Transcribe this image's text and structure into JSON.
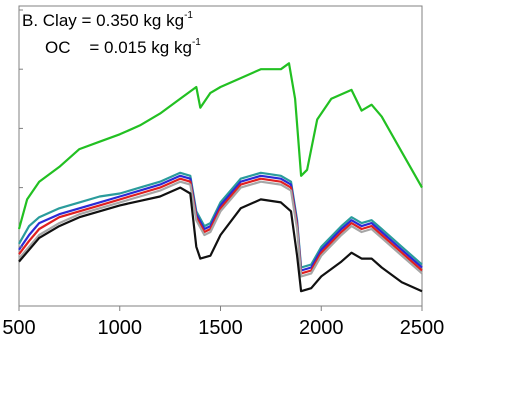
{
  "chart_data": {
    "type": "line",
    "xlim": [
      500,
      2500
    ],
    "ylim": [
      0,
      1
    ],
    "grid": false,
    "legend": "none",
    "x_ticks": [
      {
        "value": 500,
        "label": "500"
      },
      {
        "value": 1000,
        "label": "1000"
      },
      {
        "value": 1500,
        "label": "1500"
      },
      {
        "value": 2000,
        "label": "2000"
      },
      {
        "value": 2500,
        "label": "2500"
      }
    ],
    "y_tick_values": [
      0,
      0.2,
      0.4,
      0.6,
      0.8,
      1.0
    ],
    "annotation": {
      "line1_prefix": "B. Clay = 0.350 kg kg",
      "line1_sup": "-1",
      "line2_prefix": "OC    = 0.015 kg kg",
      "line2_sup": "-1"
    },
    "series": [
      {
        "color": "#22c022",
        "points": [
          [
            500,
            0.26
          ],
          [
            540,
            0.36
          ],
          [
            600,
            0.42
          ],
          [
            700,
            0.47
          ],
          [
            800,
            0.53
          ],
          [
            900,
            0.555
          ],
          [
            1000,
            0.58
          ],
          [
            1100,
            0.61
          ],
          [
            1200,
            0.65
          ],
          [
            1300,
            0.7
          ],
          [
            1380,
            0.74
          ],
          [
            1400,
            0.67
          ],
          [
            1450,
            0.72
          ],
          [
            1500,
            0.74
          ],
          [
            1600,
            0.77
          ],
          [
            1700,
            0.8
          ],
          [
            1800,
            0.8
          ],
          [
            1840,
            0.82
          ],
          [
            1870,
            0.7
          ],
          [
            1900,
            0.44
          ],
          [
            1930,
            0.46
          ],
          [
            1980,
            0.63
          ],
          [
            2050,
            0.7
          ],
          [
            2150,
            0.73
          ],
          [
            2200,
            0.66
          ],
          [
            2250,
            0.68
          ],
          [
            2300,
            0.64
          ],
          [
            2400,
            0.52
          ],
          [
            2500,
            0.4
          ]
        ]
      },
      {
        "color": "#2a9c9c",
        "points": [
          [
            500,
            0.21
          ],
          [
            550,
            0.27
          ],
          [
            600,
            0.3
          ],
          [
            700,
            0.33
          ],
          [
            800,
            0.35
          ],
          [
            900,
            0.37
          ],
          [
            1000,
            0.38
          ],
          [
            1100,
            0.4
          ],
          [
            1200,
            0.42
          ],
          [
            1300,
            0.45
          ],
          [
            1350,
            0.44
          ],
          [
            1380,
            0.32
          ],
          [
            1420,
            0.27
          ],
          [
            1450,
            0.28
          ],
          [
            1500,
            0.35
          ],
          [
            1600,
            0.43
          ],
          [
            1700,
            0.45
          ],
          [
            1800,
            0.44
          ],
          [
            1850,
            0.42
          ],
          [
            1880,
            0.29
          ],
          [
            1900,
            0.13
          ],
          [
            1950,
            0.14
          ],
          [
            2000,
            0.2
          ],
          [
            2100,
            0.27
          ],
          [
            2150,
            0.3
          ],
          [
            2200,
            0.28
          ],
          [
            2250,
            0.29
          ],
          [
            2300,
            0.26
          ],
          [
            2400,
            0.2
          ],
          [
            2500,
            0.14
          ]
        ]
      },
      {
        "color": "#2b2bd6",
        "points": [
          [
            500,
            0.19
          ],
          [
            550,
            0.24
          ],
          [
            600,
            0.28
          ],
          [
            700,
            0.31
          ],
          [
            800,
            0.33
          ],
          [
            900,
            0.35
          ],
          [
            1000,
            0.37
          ],
          [
            1100,
            0.39
          ],
          [
            1200,
            0.41
          ],
          [
            1300,
            0.44
          ],
          [
            1350,
            0.43
          ],
          [
            1380,
            0.31
          ],
          [
            1420,
            0.26
          ],
          [
            1450,
            0.27
          ],
          [
            1500,
            0.34
          ],
          [
            1600,
            0.42
          ],
          [
            1700,
            0.44
          ],
          [
            1800,
            0.43
          ],
          [
            1850,
            0.41
          ],
          [
            1880,
            0.28
          ],
          [
            1900,
            0.12
          ],
          [
            1950,
            0.13
          ],
          [
            2000,
            0.19
          ],
          [
            2100,
            0.26
          ],
          [
            2150,
            0.29
          ],
          [
            2200,
            0.27
          ],
          [
            2250,
            0.28
          ],
          [
            2300,
            0.25
          ],
          [
            2400,
            0.19
          ],
          [
            2500,
            0.13
          ]
        ]
      },
      {
        "color": "#e02020",
        "points": [
          [
            500,
            0.175
          ],
          [
            550,
            0.22
          ],
          [
            600,
            0.26
          ],
          [
            700,
            0.3
          ],
          [
            800,
            0.32
          ],
          [
            900,
            0.34
          ],
          [
            1000,
            0.36
          ],
          [
            1100,
            0.38
          ],
          [
            1200,
            0.4
          ],
          [
            1300,
            0.43
          ],
          [
            1350,
            0.42
          ],
          [
            1380,
            0.3
          ],
          [
            1420,
            0.25
          ],
          [
            1450,
            0.26
          ],
          [
            1500,
            0.33
          ],
          [
            1600,
            0.41
          ],
          [
            1700,
            0.43
          ],
          [
            1800,
            0.42
          ],
          [
            1850,
            0.4
          ],
          [
            1880,
            0.27
          ],
          [
            1900,
            0.11
          ],
          [
            1950,
            0.12
          ],
          [
            2000,
            0.18
          ],
          [
            2100,
            0.25
          ],
          [
            2150,
            0.28
          ],
          [
            2200,
            0.26
          ],
          [
            2250,
            0.27
          ],
          [
            2300,
            0.24
          ],
          [
            2400,
            0.18
          ],
          [
            2500,
            0.12
          ]
        ]
      },
      {
        "color": "#a6a6a6",
        "points": [
          [
            500,
            0.16
          ],
          [
            550,
            0.2
          ],
          [
            600,
            0.24
          ],
          [
            700,
            0.28
          ],
          [
            800,
            0.31
          ],
          [
            900,
            0.33
          ],
          [
            1000,
            0.35
          ],
          [
            1100,
            0.37
          ],
          [
            1200,
            0.39
          ],
          [
            1300,
            0.42
          ],
          [
            1350,
            0.41
          ],
          [
            1380,
            0.29
          ],
          [
            1420,
            0.24
          ],
          [
            1450,
            0.25
          ],
          [
            1500,
            0.32
          ],
          [
            1600,
            0.4
          ],
          [
            1700,
            0.42
          ],
          [
            1800,
            0.41
          ],
          [
            1850,
            0.39
          ],
          [
            1880,
            0.26
          ],
          [
            1900,
            0.1
          ],
          [
            1950,
            0.11
          ],
          [
            2000,
            0.17
          ],
          [
            2100,
            0.24
          ],
          [
            2150,
            0.27
          ],
          [
            2200,
            0.25
          ],
          [
            2250,
            0.26
          ],
          [
            2300,
            0.23
          ],
          [
            2400,
            0.17
          ],
          [
            2500,
            0.11
          ]
        ]
      },
      {
        "color": "#111111",
        "points": [
          [
            500,
            0.15
          ],
          [
            550,
            0.19
          ],
          [
            600,
            0.23
          ],
          [
            700,
            0.27
          ],
          [
            800,
            0.3
          ],
          [
            900,
            0.32
          ],
          [
            1000,
            0.34
          ],
          [
            1100,
            0.355
          ],
          [
            1200,
            0.37
          ],
          [
            1300,
            0.4
          ],
          [
            1350,
            0.38
          ],
          [
            1380,
            0.2
          ],
          [
            1400,
            0.16
          ],
          [
            1450,
            0.17
          ],
          [
            1500,
            0.24
          ],
          [
            1600,
            0.33
          ],
          [
            1700,
            0.36
          ],
          [
            1800,
            0.35
          ],
          [
            1850,
            0.32
          ],
          [
            1880,
            0.17
          ],
          [
            1900,
            0.05
          ],
          [
            1950,
            0.06
          ],
          [
            2000,
            0.1
          ],
          [
            2100,
            0.15
          ],
          [
            2150,
            0.18
          ],
          [
            2200,
            0.16
          ],
          [
            2250,
            0.16
          ],
          [
            2300,
            0.13
          ],
          [
            2400,
            0.08
          ],
          [
            2500,
            0.05
          ]
        ]
      }
    ]
  }
}
